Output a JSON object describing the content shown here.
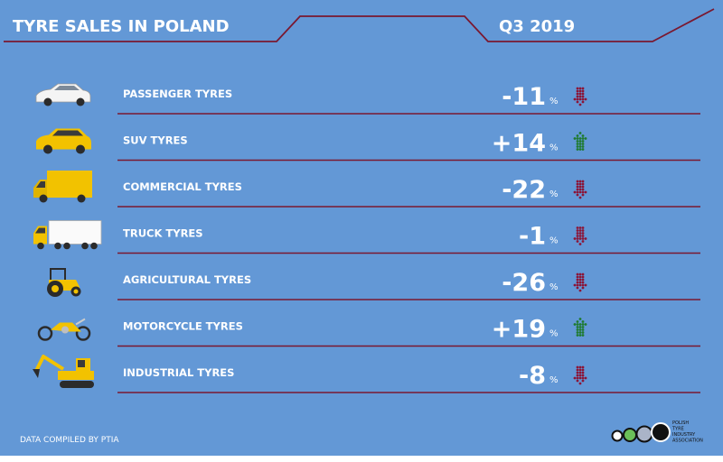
{
  "header": {
    "title": "TYRE SALES IN POLAND",
    "period": "Q3 2019"
  },
  "footer": {
    "credit": "DATA COMPILED BY PTIA",
    "logo_lines": [
      "POLISH",
      "TYRE",
      "INDUSTRY",
      "ASSOCIATION"
    ]
  },
  "colors": {
    "background": "#6398d6",
    "line": "#7a1830",
    "text": "#ffffff",
    "down": "#8b1538",
    "up": "#1e7a2e",
    "vehicle": "#f2c200"
  },
  "chart_data": {
    "type": "table",
    "title": "TYRE SALES IN POLAND",
    "period": "Q3 2019",
    "unit": "%",
    "categories": [
      "PASSENGER TYRES",
      "SUV TYRES",
      "COMMERCIAL TYRES",
      "TRUCK TYRES",
      "AGRICULTURAL TYRES",
      "MOTORCYCLE TYRES",
      "INDUSTRIAL TYRES"
    ],
    "values": [
      -11,
      14,
      -22,
      -1,
      -26,
      19,
      -8
    ],
    "value_labels": [
      "-11",
      "+14",
      "-22",
      "-1",
      "-26",
      "+19",
      "-8"
    ],
    "icons": [
      "car-icon",
      "suv-icon",
      "van-icon",
      "truck-icon",
      "tractor-icon",
      "motorcycle-icon",
      "excavator-icon"
    ]
  }
}
